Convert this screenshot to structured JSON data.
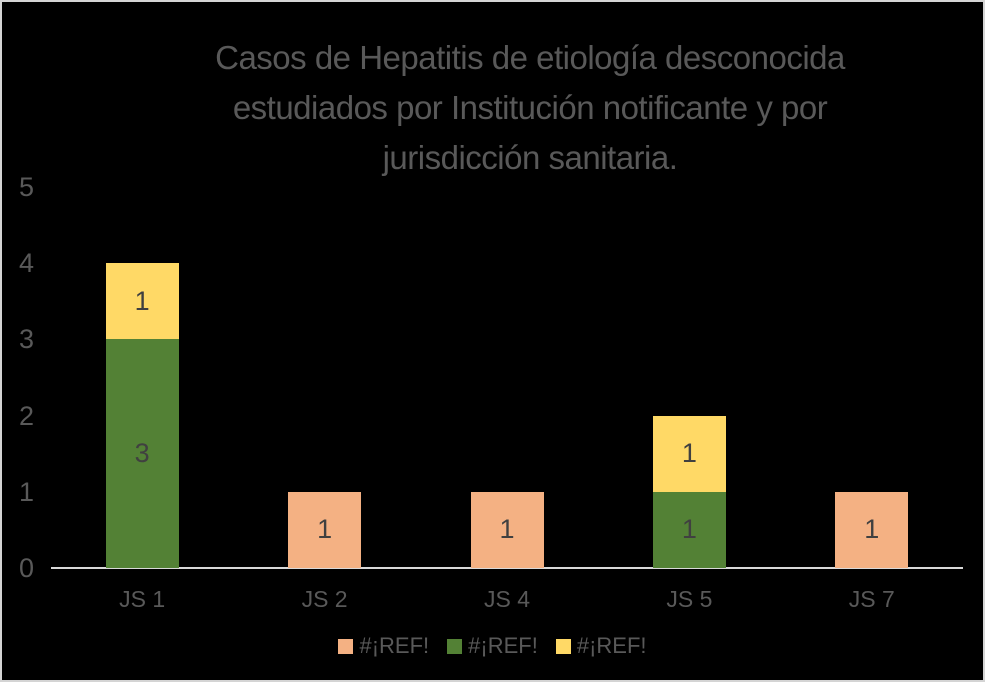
{
  "chart_data": {
    "type": "bar",
    "stacked": true,
    "title": "Casos de Hepatitis de etiología desconocida estudiados por Institución notificante y por jurisdicción sanitaria.",
    "title_lines": [
      "Casos de Hepatitis de etiología desconocida",
      "estudiados por Institución notificante y por",
      "jurisdicción sanitaria."
    ],
    "categories": [
      "JS 1",
      "JS 2",
      "JS 4",
      "JS 5",
      "JS 7"
    ],
    "series": [
      {
        "name": "#¡REF!",
        "color": "#f4b183",
        "values": [
          0,
          1,
          1,
          0,
          1
        ]
      },
      {
        "name": "#¡REF!",
        "color": "#538135",
        "values": [
          3,
          0,
          0,
          1,
          0
        ]
      },
      {
        "name": "#¡REF!",
        "color": "#ffd966",
        "values": [
          1,
          0,
          0,
          1,
          0
        ]
      }
    ],
    "stack_order": "first-series-bottom",
    "totals": {
      "JS 1": 4,
      "JS 2": 1,
      "JS 4": 1,
      "JS 5": 2,
      "JS 7": 1
    },
    "xlabel": "",
    "ylabel": "",
    "ylim": [
      0,
      5
    ],
    "y_ticks": [
      5,
      4,
      3,
      2,
      1,
      0
    ],
    "grid": false,
    "data_labels": true,
    "legend_position": "bottom"
  },
  "style": {
    "background": "#000000",
    "border_color": "#d4d4d4",
    "title_color": "#595959",
    "tick_color": "#595959",
    "data_label_color": "#404040",
    "axis_line_color": "#d9d9d9"
  }
}
